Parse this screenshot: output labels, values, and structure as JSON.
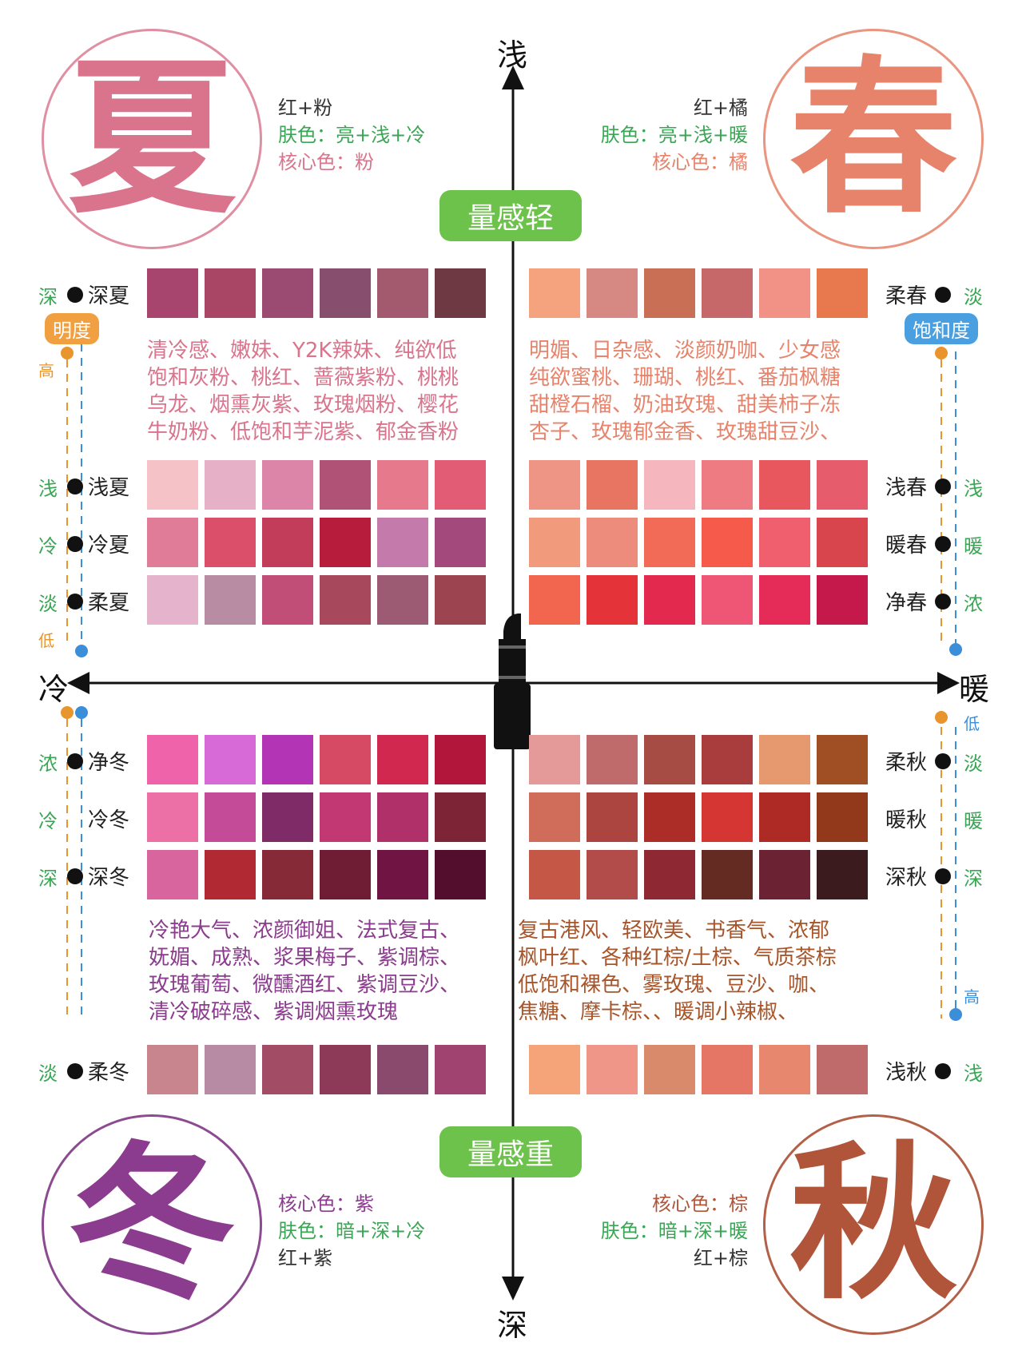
{
  "axes": {
    "top": "浅",
    "bottom": "深",
    "left": "冷",
    "right": "暖",
    "light_pill": "量感轻",
    "heavy_pill": "量感重"
  },
  "tags": {
    "brightness": "明度",
    "saturation": "饱和度"
  },
  "scale": {
    "left_top_high": "高",
    "left_top_low": "低",
    "right_top_low": "低",
    "right_bottom_high": "高"
  },
  "seasons": {
    "summer": {
      "char": "夏",
      "color": "#d9748c",
      "circle_border": "#e08fa3",
      "line1": "红+粉",
      "line2": "肤色：亮+浅+冷",
      "line3": "核心色：粉"
    },
    "spring": {
      "char": "春",
      "color": "#e8836b",
      "circle_border": "#e9957f",
      "line1": "红+橘",
      "line2": "肤色：亮+浅+暖",
      "line3": "核心色：橘"
    },
    "winter": {
      "char": "冬",
      "color": "#8c3c8e",
      "circle_border": "#8c4a90",
      "line1": "核心色：紫",
      "line2": "肤色：暗+深+冷",
      "line3": "红+紫"
    },
    "autumn": {
      "char": "秋",
      "color": "#b0553a",
      "circle_border": "#b36048",
      "line1": "核心色：棕",
      "line2": "肤色：暗+深+暖",
      "line3": "红+棕"
    }
  },
  "descriptions": {
    "summer": [
      "清冷感、嫩妹、Y2K辣妹、纯欲低",
      "饱和灰粉、桃红、蔷薇紫粉、桃桃",
      "乌龙、烟熏灰紫、玫瑰烟粉、樱花",
      "牛奶粉、低饱和芋泥紫、郁金香粉"
    ],
    "spring": [
      "明媚、日杂感、淡颜奶咖、少女感",
      "纯欲蜜桃、珊瑚、桃红、番茄枫糖",
      "甜橙石榴、奶油玫瑰、甜美柿子冻",
      "杏子、玫瑰郁金香、玫瑰甜豆沙、"
    ],
    "winter": [
      "冷艳大气、浓颜御姐、法式复古、",
      "妩媚、成熟、浆果梅子、紫调棕、",
      "玫瑰葡萄、微醺酒红、紫调豆沙、",
      "清冷破碎感、紫调烟熏玫瑰"
    ],
    "autumn": [
      "复古港风、轻欧美、书香气、浓郁",
      "枫叶红、各种红棕/土棕、气质茶棕",
      "低饱和裸色、雾玫瑰、豆沙、咖、",
      "焦糖、摩卡棕、、暖调小辣椒、"
    ]
  },
  "rows": {
    "deep_summer": {
      "label": "深夏",
      "mark": "深",
      "colors": [
        "#a8456f",
        "#a94565",
        "#9b4a72",
        "#874e6e",
        "#a45a6e",
        "#6e3942"
      ]
    },
    "light_summer": {
      "label": "浅夏",
      "mark": "浅",
      "colors": [
        "#f5c2c8",
        "#e6b0c7",
        "#dc85a8",
        "#b05275",
        "#e67a8c",
        "#e25c75"
      ]
    },
    "cool_summer": {
      "label": "冷夏",
      "mark": "冷",
      "colors": [
        "#e07c97",
        "#db4f6b",
        "#c13d59",
        "#b81c3c",
        "#c47aab",
        "#a4497b"
      ]
    },
    "soft_summer": {
      "label": "柔夏",
      "mark": "淡",
      "colors": [
        "#e6b3cc",
        "#b88ca3",
        "#c04e77",
        "#a7485c",
        "#9c5a73",
        "#9c4550"
      ]
    },
    "soft_spring": {
      "label": "柔春",
      "mark": "淡",
      "colors": [
        "#f4a37e",
        "#d68882",
        "#c96f55",
        "#c6686a",
        "#f29286",
        "#e8784e"
      ]
    },
    "light_spring": {
      "label": "浅春",
      "mark": "浅",
      "colors": [
        "#ef9585",
        "#e87561",
        "#f6b6bd",
        "#ef7b82",
        "#e9575e",
        "#e75c6d"
      ]
    },
    "warm_spring": {
      "label": "暖春",
      "mark": "暖",
      "colors": [
        "#f19a7c",
        "#ed8c7d",
        "#f16b56",
        "#f55a4a",
        "#ef5f6e",
        "#d8454d"
      ]
    },
    "clear_spring": {
      "label": "净春",
      "mark": "浓",
      "colors": [
        "#f2664f",
        "#e4343a",
        "#e4294e",
        "#ef5574",
        "#e52b57",
        "#c4194a"
      ]
    },
    "clear_winter": {
      "label": "净冬",
      "mark": "浓",
      "colors": [
        "#ef63ab",
        "#d86ad8",
        "#b335b5",
        "#d74a64",
        "#d1284f",
        "#b3163b"
      ]
    },
    "cool_winter": {
      "label": "冷冬",
      "mark": "冷",
      "colors": [
        "#ec6fa6",
        "#c44b97",
        "#7f2b68",
        "#c23872",
        "#b0306a",
        "#7d2437"
      ]
    },
    "deep_winter": {
      "label": "深冬",
      "mark": "深",
      "colors": [
        "#d8659e",
        "#b02933",
        "#862a37",
        "#6f1d35",
        "#6f1443",
        "#520e2c"
      ]
    },
    "soft_autumn": {
      "label": "柔秋",
      "mark": "淡",
      "colors": [
        "#e49a98",
        "#c06b6b",
        "#a74c45",
        "#a93c3c",
        "#e6986f",
        "#a04f24"
      ]
    },
    "warm_autumn": {
      "label": "暖秋",
      "mark": "暖",
      "colors": [
        "#cf6d5a",
        "#ac4540",
        "#ac2c28",
        "#d53633",
        "#ae2b25",
        "#92381b"
      ]
    },
    "deep_autumn": {
      "label": "深秋",
      "mark": "深",
      "colors": [
        "#c45745",
        "#b24c4a",
        "#8e2934",
        "#632b22",
        "#6b2233",
        "#3c1b1e"
      ]
    },
    "soft_winter": {
      "label": "柔冬",
      "mark": "淡",
      "colors": [
        "#c8858d",
        "#b88ba5",
        "#a24c66",
        "#8c3a57",
        "#8a4a6d",
        "#a14370"
      ]
    },
    "light_autumn": {
      "label": "浅秋",
      "mark": "浅",
      "colors": [
        "#f5a47a",
        "#ef9688",
        "#d98a6a",
        "#e57565",
        "#e6876e",
        "#c06b6b"
      ]
    }
  }
}
